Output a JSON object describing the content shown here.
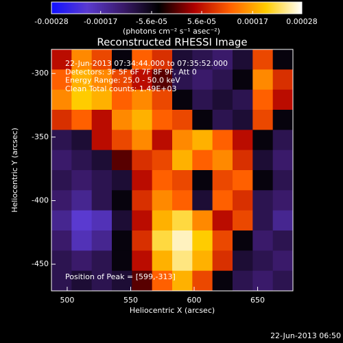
{
  "chart_data": {
    "type": "heatmap",
    "title": "Reconstructed RHESSI Image",
    "x_label": "Heliocentric X (arcsec)",
    "y_label": "Heliocentric Y (arcsec)",
    "annotations": [
      "22-Jun-2013 07:34:44.000 to 07:35:52.000",
      "Detectors: 3F 5F 6F 7F 8F 9F, Att 0",
      "Energy Range: 25.0 - 50.0 keV",
      "Clean     Total counts: 1.49E+03"
    ],
    "peak_label": "Position of Peak = [599,-313]",
    "footer": "22-Jun-2013 06:50",
    "colorbar_label": "(photons cm⁻² s⁻¹ asec⁻²)",
    "clim": [
      -0.00028,
      0.00028
    ],
    "cticks": [
      -0.00028,
      -0.00017,
      {
        "value": -5.6e-05,
        "label": "-5.6e-05"
      },
      {
        "value": 5.6e-05,
        "label": "5.6e-05"
      },
      0.00017,
      0.00028
    ],
    "colormap": [
      "#1010ff",
      "#5a3ad0",
      "#3a1a6a",
      "#000000",
      "#b00000",
      "#ff6000",
      "#ffcc00",
      "#ffffff"
    ],
    "xlim": [
      487.6,
      677.8
    ],
    "xticks": [
      500,
      550,
      600,
      650
    ],
    "ylim": [
      -471,
      -281
    ],
    "yticks": [
      -300,
      -350,
      -400,
      -450
    ],
    "z": [
      [
        5e-05,
        0.00015,
        0.0001,
        -5e-05,
        0.00012,
        8e-05,
        -8e-05,
        -0.0001,
        -0.00012,
        -8e-05,
        0.0001,
        -5e-05
      ],
      [
        0.00012,
        0.00018,
        0.00015,
        0.0001,
        5e-05,
        0,
        -0.0001,
        -0.00012,
        -0.0001,
        -5e-05,
        0.00015,
        8e-05
      ],
      [
        0.00015,
        0.0002,
        0.00018,
        0.00012,
        0.00015,
        0.0001,
        -5e-05,
        -0.0001,
        -8e-05,
        -0.0001,
        0.00012,
        5e-05
      ],
      [
        8e-05,
        0.00012,
        5e-05,
        0.00015,
        0.00018,
        0.00012,
        0.0001,
        -5e-05,
        -0.0001,
        -8e-05,
        0.0001,
        -5e-05
      ],
      [
        -0.0001,
        -8e-05,
        5e-05,
        0.0001,
        0.00015,
        5e-05,
        0.00015,
        0.00018,
        0.00012,
        5e-05,
        -5e-05,
        -0.0001
      ],
      [
        -0.00012,
        -0.0001,
        -8e-05,
        0,
        8e-05,
        0.0001,
        0.00018,
        0.00012,
        0.00015,
        8e-05,
        -8e-05,
        -0.00012
      ],
      [
        -0.0001,
        -0.00012,
        -0.0001,
        -8e-05,
        5e-05,
        0.00012,
        0.0001,
        -5e-05,
        0.0001,
        0.00012,
        -5e-05,
        -0.0001
      ],
      [
        -0.00012,
        -0.00015,
        -0.0001,
        -5e-05,
        8e-05,
        0.00015,
        0.00012,
        -8e-05,
        0.00012,
        8e-05,
        -0.0001,
        -0.00012
      ],
      [
        -0.00015,
        -0.0002,
        -0.00018,
        -8e-05,
        5e-05,
        0.00018,
        0.00022,
        0.00015,
        5e-05,
        0.0001,
        -0.0001,
        -0.00015
      ],
      [
        -0.00012,
        -0.00018,
        -0.00015,
        -5e-05,
        8e-05,
        0.00022,
        0.00026,
        0.0002,
        0.0001,
        -5e-05,
        -0.00012,
        -0.0001
      ],
      [
        -0.0001,
        -0.00012,
        -0.0001,
        -5e-05,
        5e-05,
        0.00018,
        0.00024,
        0.00018,
        8e-05,
        -8e-05,
        -0.0001,
        -0.00012
      ],
      [
        -0.0001,
        -8e-05,
        -0.0001,
        -8e-05,
        0,
        0.00012,
        0.00018,
        0.0001,
        -5e-05,
        -0.0001,
        -0.00012,
        -0.0001
      ]
    ]
  }
}
